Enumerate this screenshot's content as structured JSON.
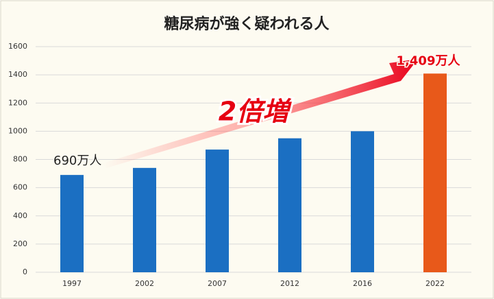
{
  "chart_data": {
    "type": "bar",
    "title": "糖尿病が強く疑われる人",
    "categories": [
      "1997",
      "2002",
      "2007",
      "2012",
      "2016",
      "2022"
    ],
    "values": [
      690,
      740,
      870,
      950,
      1000,
      1409
    ],
    "value_labels": [
      "690万人",
      null,
      null,
      null,
      null,
      "1,409万人"
    ],
    "colors": [
      "#1b6fc2",
      "#1b6fc2",
      "#1b6fc2",
      "#1b6fc2",
      "#1b6fc2",
      "#e8591a"
    ],
    "ylim": [
      0,
      1600
    ],
    "yticks": [
      0,
      200,
      400,
      600,
      800,
      1000,
      1200,
      1400,
      1600
    ],
    "grid": true,
    "annotation": "2倍増"
  }
}
